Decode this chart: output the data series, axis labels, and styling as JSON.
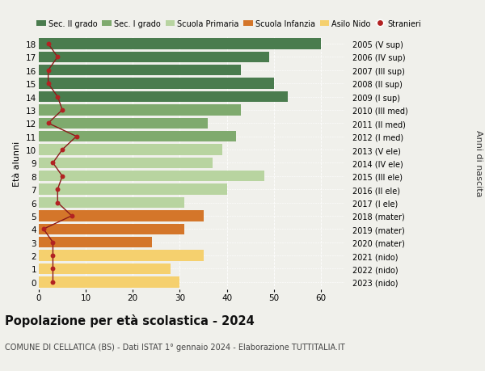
{
  "ages": [
    18,
    17,
    16,
    15,
    14,
    13,
    12,
    11,
    10,
    9,
    8,
    7,
    6,
    5,
    4,
    3,
    2,
    1,
    0
  ],
  "bar_values": [
    60,
    49,
    43,
    50,
    53,
    43,
    36,
    42,
    39,
    37,
    48,
    40,
    31,
    35,
    31,
    24,
    35,
    28,
    30
  ],
  "stranieri": [
    2,
    4,
    2,
    2,
    4,
    5,
    2,
    8,
    5,
    3,
    5,
    4,
    4,
    7,
    1,
    3,
    3,
    3,
    3
  ],
  "right_labels": [
    "2005 (V sup)",
    "2006 (IV sup)",
    "2007 (III sup)",
    "2008 (II sup)",
    "2009 (I sup)",
    "2010 (III med)",
    "2011 (II med)",
    "2012 (I med)",
    "2013 (V ele)",
    "2014 (IV ele)",
    "2015 (III ele)",
    "2016 (II ele)",
    "2017 (I ele)",
    "2018 (mater)",
    "2019 (mater)",
    "2020 (mater)",
    "2021 (nido)",
    "2022 (nido)",
    "2023 (nido)"
  ],
  "bar_colors": [
    "#4a7c4e",
    "#4a7c4e",
    "#4a7c4e",
    "#4a7c4e",
    "#4a7c4e",
    "#7faa6e",
    "#7faa6e",
    "#7faa6e",
    "#b8d4a0",
    "#b8d4a0",
    "#b8d4a0",
    "#b8d4a0",
    "#b8d4a0",
    "#d4762a",
    "#d4762a",
    "#d4762a",
    "#f5d06e",
    "#f5d06e",
    "#f5d06e"
  ],
  "stranieri_color": "#b22222",
  "line_color": "#8b1a1a",
  "title": "Popolazione per età scolastica - 2024",
  "subtitle": "COMUNE DI CELLATICA (BS) - Dati ISTAT 1° gennaio 2024 - Elaborazione TUTTITALIA.IT",
  "ylabel_left": "Età alunni",
  "ylabel_right": "Anni di nascita",
  "xlim": [
    0,
    65
  ],
  "xticks": [
    0,
    10,
    20,
    30,
    40,
    50,
    60
  ],
  "legend_labels": [
    "Sec. II grado",
    "Sec. I grado",
    "Scuola Primaria",
    "Scuola Infanzia",
    "Asilo Nido",
    "Stranieri"
  ],
  "legend_colors": [
    "#4a7c4e",
    "#7faa6e",
    "#b8d4a0",
    "#d4762a",
    "#f5d06e",
    "#b22222"
  ],
  "background_color": "#f0f0eb",
  "bar_height": 0.82
}
